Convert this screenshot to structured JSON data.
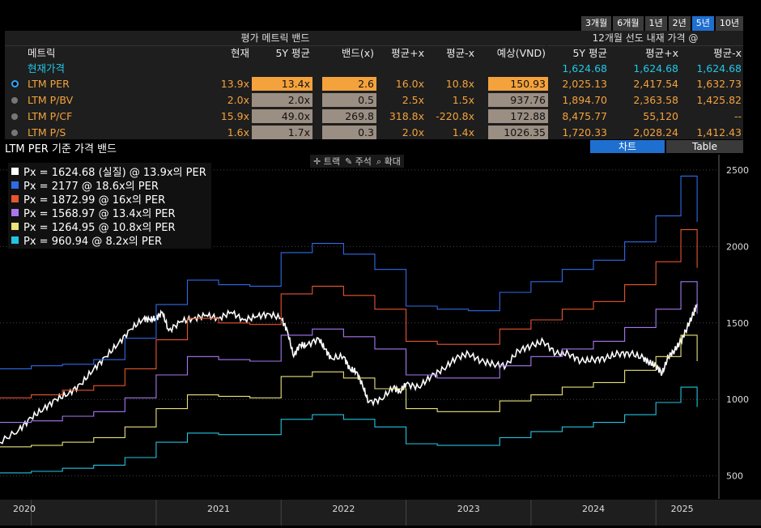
{
  "range_tabs": [
    {
      "label": "3개월"
    },
    {
      "label": "6개월"
    },
    {
      "label": "1년"
    },
    {
      "label": "2년"
    },
    {
      "label": "5년"
    },
    {
      "label": "10년"
    }
  ],
  "table": {
    "title_left": "평가 메트릭 밴드",
    "title_right": "12개월 선도 내재 가격 @",
    "headers": [
      "메트릭",
      "현재",
      "5Y 평균",
      "밴드(x)",
      "평균+x",
      "평균-x",
      "예상(VND)",
      "5Y 평균",
      "평균+x",
      "평균-x"
    ],
    "price_row": {
      "label": "현재가격",
      "v1": "1,624.68",
      "v2": "1,624.68",
      "v3": "1,624.68"
    },
    "rows": [
      {
        "metric": "LTM PER",
        "current": "13.9x",
        "avg": "13.4x",
        "band": "2.6",
        "plus": "16.0x",
        "minus": "10.8x",
        "expected": "150.93",
        "p_avg": "2,025.13",
        "p_plus": "2,417.54",
        "p_minus": "1,632.73"
      },
      {
        "metric": "LTM P/BV",
        "current": "2.0x",
        "avg": "2.0x",
        "band": "0.5",
        "plus": "2.5x",
        "minus": "1.5x",
        "expected": "937.76",
        "p_avg": "1,894.70",
        "p_plus": "2,363.58",
        "p_minus": "1,425.82"
      },
      {
        "metric": "LTM P/CF",
        "current": "15.9x",
        "avg": "49.0x",
        "band": "269.8",
        "plus": "318.8x",
        "minus": "-220.8x",
        "expected": "172.88",
        "p_avg": "8,475.77",
        "p_plus": "55,120",
        "p_minus": "--"
      },
      {
        "metric": "LTM P/S",
        "current": "1.6x",
        "avg": "1.7x",
        "band": "0.3",
        "plus": "2.0x",
        "minus": "1.4x",
        "expected": "1026.35",
        "p_avg": "1,720.33",
        "p_plus": "2,028.24",
        "p_minus": "1,412.43"
      }
    ]
  },
  "chart_title": "LTM PER 기준 가격 밴드",
  "view_tabs": {
    "chart": "차트",
    "table": "Table"
  },
  "tools": [
    "트랙",
    "주석",
    "확대"
  ],
  "colors": {
    "price": "#ffffff",
    "band1": "#2f6be8",
    "band2": "#e8552e",
    "band3": "#a877f0",
    "band4": "#eae27a",
    "band5": "#23c4e0",
    "accent": "#1f6fd0",
    "orange": "#f4a23c",
    "cyan": "#20c8e6"
  },
  "chart_data": {
    "type": "line",
    "ylim": [
      350,
      2600
    ],
    "yticks": [
      500,
      1000,
      1500,
      2000,
      2500
    ],
    "xticks": [
      "2020",
      "2021",
      "2022",
      "2023",
      "2024",
      "2025"
    ],
    "x_range": [
      2019.75,
      2025.42
    ],
    "series": [
      {
        "name": "Px = 1624.68 (실질) @ 13.9x의 PER",
        "color": "#ffffff",
        "x": [
          2019.75,
          2019.9,
          2020.0,
          2020.1,
          2020.2,
          2020.3,
          2020.4,
          2020.5,
          2020.6,
          2020.7,
          2020.8,
          2020.9,
          2020.95,
          2021.0,
          2021.05,
          2021.1,
          2021.2,
          2021.3,
          2021.4,
          2021.5,
          2021.6,
          2021.7,
          2021.8,
          2021.9,
          2022.0,
          2022.05,
          2022.1,
          2022.15,
          2022.2,
          2022.3,
          2022.35,
          2022.4,
          2022.5,
          2022.55,
          2022.6,
          2022.65,
          2022.7,
          2022.8,
          2022.9,
          2022.95,
          2023.0,
          2023.1,
          2023.2,
          2023.3,
          2023.4,
          2023.5,
          2023.6,
          2023.7,
          2023.8,
          2023.9,
          2024.0,
          2024.1,
          2024.2,
          2024.3,
          2024.4,
          2024.5,
          2024.6,
          2024.7,
          2024.8,
          2024.9,
          2024.95,
          2025.0,
          2025.05,
          2025.1,
          2025.15,
          2025.2,
          2025.25,
          2025.3,
          2025.33
        ],
        "y": [
          720,
          800,
          880,
          940,
          1000,
          1040,
          1100,
          1200,
          1280,
          1370,
          1460,
          1530,
          1520,
          1530,
          1570,
          1450,
          1510,
          1530,
          1550,
          1530,
          1570,
          1520,
          1540,
          1560,
          1530,
          1450,
          1280,
          1360,
          1350,
          1400,
          1330,
          1270,
          1280,
          1200,
          1180,
          1100,
          980,
          1000,
          1080,
          1050,
          1100,
          1080,
          1150,
          1200,
          1270,
          1300,
          1250,
          1230,
          1220,
          1320,
          1350,
          1380,
          1300,
          1300,
          1250,
          1260,
          1270,
          1300,
          1300,
          1270,
          1240,
          1220,
          1170,
          1280,
          1320,
          1380,
          1470,
          1560,
          1625
        ]
      },
      {
        "name": "Px = 2177 @ 18.6x의 PER",
        "color": "#2f6be8",
        "x": [
          2019.75,
          2020.0,
          2020.25,
          2020.5,
          2020.75,
          2021.0,
          2021.25,
          2021.5,
          2021.75,
          2022.0,
          2022.25,
          2022.5,
          2022.75,
          2023.0,
          2023.25,
          2023.5,
          2023.75,
          2024.0,
          2024.25,
          2024.5,
          2024.75,
          2025.0,
          2025.2,
          2025.33
        ],
        "y": [
          1200,
          1220,
          1230,
          1260,
          1400,
          1620,
          1780,
          1750,
          1740,
          1960,
          2020,
          1950,
          1850,
          1610,
          1590,
          1580,
          1700,
          1770,
          1850,
          1910,
          2030,
          2200,
          2460,
          2160
        ]
      },
      {
        "name": "Px = 1872.99 @ 16x의 PER",
        "color": "#e8552e",
        "x": [
          2019.75,
          2020.0,
          2020.25,
          2020.5,
          2020.75,
          2021.0,
          2021.25,
          2021.5,
          2021.75,
          2022.0,
          2022.25,
          2022.5,
          2022.75,
          2023.0,
          2023.25,
          2023.5,
          2023.75,
          2024.0,
          2024.25,
          2024.5,
          2024.75,
          2025.0,
          2025.2,
          2025.33
        ],
        "y": [
          1010,
          1030,
          1060,
          1090,
          1200,
          1390,
          1530,
          1500,
          1490,
          1690,
          1740,
          1680,
          1590,
          1380,
          1360,
          1360,
          1460,
          1520,
          1590,
          1640,
          1750,
          1900,
          2110,
          1860
        ]
      },
      {
        "name": "Px = 1568.97 @ 13.4x의 PER",
        "color": "#a877f0",
        "x": [
          2019.75,
          2020.0,
          2020.25,
          2020.5,
          2020.75,
          2021.0,
          2021.25,
          2021.5,
          2021.75,
          2022.0,
          2022.25,
          2022.5,
          2022.75,
          2023.0,
          2023.25,
          2023.5,
          2023.75,
          2024.0,
          2024.25,
          2024.5,
          2024.75,
          2025.0,
          2025.2,
          2025.33
        ],
        "y": [
          850,
          860,
          890,
          920,
          1010,
          1160,
          1280,
          1260,
          1250,
          1420,
          1460,
          1410,
          1330,
          1160,
          1140,
          1140,
          1220,
          1280,
          1330,
          1380,
          1470,
          1590,
          1770,
          1560
        ]
      },
      {
        "name": "Px = 1264.95 @ 10.8x의 PER",
        "color": "#eae27a",
        "x": [
          2019.75,
          2020.0,
          2020.25,
          2020.5,
          2020.75,
          2021.0,
          2021.25,
          2021.5,
          2021.75,
          2022.0,
          2022.25,
          2022.5,
          2022.75,
          2023.0,
          2023.25,
          2023.5,
          2023.75,
          2024.0,
          2024.25,
          2024.5,
          2024.75,
          2025.0,
          2025.2,
          2025.33
        ],
        "y": [
          690,
          700,
          720,
          750,
          820,
          940,
          1030,
          1020,
          1010,
          1150,
          1180,
          1140,
          1070,
          940,
          920,
          920,
          990,
          1030,
          1080,
          1110,
          1190,
          1280,
          1420,
          1250
        ]
      },
      {
        "name": "Px = 960.94 @ 8.2x의 PER",
        "color": "#23c4e0",
        "x": [
          2019.75,
          2020.0,
          2020.25,
          2020.5,
          2020.75,
          2021.0,
          2021.25,
          2021.5,
          2021.75,
          2022.0,
          2022.25,
          2022.5,
          2022.75,
          2023.0,
          2023.25,
          2023.5,
          2023.75,
          2024.0,
          2024.25,
          2024.5,
          2024.75,
          2025.0,
          2025.2,
          2025.33
        ],
        "y": [
          520,
          530,
          550,
          570,
          620,
          720,
          780,
          770,
          770,
          870,
          900,
          870,
          820,
          710,
          700,
          700,
          750,
          790,
          820,
          850,
          900,
          980,
          1080,
          950
        ]
      }
    ]
  }
}
